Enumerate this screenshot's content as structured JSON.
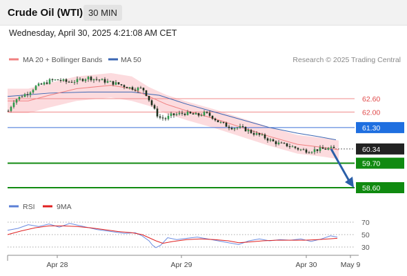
{
  "header": {
    "title": "Crude Oil (WTI)",
    "timeframe": "30 MIN",
    "datetime": "Wednesday, April 30, 2025 4:21:08 AM CET"
  },
  "chart_data": {
    "type": "candlestick",
    "legend": [
      {
        "label": "MA 20 + Bollinger Bands",
        "color": "#f08080"
      },
      {
        "label": "MA 50",
        "color": "#3a66b3"
      }
    ],
    "credit": "Research © 2025 Trading Central",
    "price_levels": [
      {
        "label": "62.60",
        "value": 62.6,
        "kind": "resistance",
        "color": "#e04a4a"
      },
      {
        "label": "62.00",
        "value": 62.0,
        "kind": "resistance",
        "color": "#e04a4a"
      },
      {
        "label": "61.30",
        "value": 61.3,
        "kind": "pivot",
        "color": "#3a6fd8"
      },
      {
        "label": "60.34",
        "value": 60.34,
        "kind": "last",
        "color": "#333333"
      },
      {
        "label": "59.70",
        "value": 59.7,
        "kind": "support",
        "color": "#108a10"
      },
      {
        "label": "58.60",
        "value": 58.6,
        "kind": "target",
        "color": "#108a10"
      }
    ],
    "x_ticks": [
      "Apr 28",
      "Apr 29",
      "Apr 30",
      "May 9"
    ],
    "series": [
      {
        "name": "Price",
        "points": [
          [
            0,
            62.05
          ],
          [
            8,
            62.5
          ],
          [
            18,
            62.7
          ],
          [
            28,
            62.85
          ],
          [
            40,
            63.15
          ],
          [
            50,
            63.25
          ],
          [
            60,
            63.4
          ],
          [
            72,
            63.45
          ],
          [
            85,
            63.35
          ],
          [
            100,
            63.4
          ],
          [
            115,
            63.55
          ],
          [
            130,
            63.45
          ],
          [
            145,
            63.35
          ],
          [
            160,
            63.25
          ],
          [
            175,
            63.1
          ],
          [
            185,
            63.05
          ],
          [
            195,
            63.05
          ],
          [
            200,
            62.8
          ],
          [
            205,
            62.5
          ],
          [
            210,
            62.2
          ],
          [
            215,
            61.9
          ],
          [
            220,
            61.75
          ],
          [
            228,
            61.7
          ],
          [
            236,
            61.85
          ],
          [
            245,
            61.9
          ],
          [
            255,
            61.95
          ],
          [
            265,
            61.9
          ],
          [
            275,
            61.85
          ],
          [
            285,
            61.95
          ],
          [
            295,
            61.8
          ],
          [
            305,
            61.55
          ],
          [
            315,
            61.4
          ],
          [
            325,
            61.3
          ],
          [
            335,
            61.3
          ],
          [
            345,
            61.2
          ],
          [
            355,
            61.05
          ],
          [
            365,
            60.95
          ],
          [
            375,
            60.8
          ],
          [
            385,
            60.65
          ],
          [
            395,
            60.55
          ],
          [
            405,
            60.5
          ],
          [
            415,
            60.4
          ],
          [
            425,
            60.3
          ],
          [
            435,
            60.25
          ],
          [
            445,
            60.3
          ],
          [
            455,
            60.33
          ],
          [
            465,
            60.36
          ],
          [
            475,
            60.34
          ]
        ]
      },
      {
        "name": "MA 20",
        "points": [
          [
            0,
            62.5
          ],
          [
            30,
            62.5
          ],
          [
            60,
            62.75
          ],
          [
            100,
            63.05
          ],
          [
            150,
            63.2
          ],
          [
            180,
            63.05
          ],
          [
            205,
            62.7
          ],
          [
            230,
            62.35
          ],
          [
            260,
            62.05
          ],
          [
            300,
            61.7
          ],
          [
            340,
            61.3
          ],
          [
            380,
            60.9
          ],
          [
            420,
            60.55
          ],
          [
            460,
            60.4
          ],
          [
            480,
            60.3
          ]
        ]
      },
      {
        "name": "MA 50",
        "points": [
          [
            0,
            62.7
          ],
          [
            60,
            62.85
          ],
          [
            120,
            62.9
          ],
          [
            180,
            62.9
          ],
          [
            220,
            62.75
          ],
          [
            260,
            62.35
          ],
          [
            300,
            62.0
          ],
          [
            340,
            61.65
          ],
          [
            380,
            61.3
          ],
          [
            420,
            61.05
          ],
          [
            450,
            60.9
          ],
          [
            476,
            60.75
          ]
        ]
      }
    ],
    "rsi": {
      "legend": [
        {
          "label": "RSI",
          "color": "#5b7fd6"
        },
        {
          "label": "9MA",
          "color": "#e02020"
        }
      ],
      "levels": [
        70,
        50,
        30
      ],
      "ylim": [
        20,
        80
      ],
      "rsi_values": [
        [
          0,
          57
        ],
        [
          15,
          60
        ],
        [
          30,
          66
        ],
        [
          45,
          63
        ],
        [
          60,
          67
        ],
        [
          75,
          62
        ],
        [
          90,
          68
        ],
        [
          110,
          63
        ],
        [
          130,
          58
        ],
        [
          150,
          55
        ],
        [
          170,
          52
        ],
        [
          185,
          53
        ],
        [
          195,
          48
        ],
        [
          205,
          40
        ],
        [
          210,
          33
        ],
        [
          215,
          29
        ],
        [
          222,
          33
        ],
        [
          232,
          45
        ],
        [
          245,
          42
        ],
        [
          260,
          44
        ],
        [
          275,
          46
        ],
        [
          290,
          43
        ],
        [
          305,
          40
        ],
        [
          320,
          37
        ],
        [
          335,
          34
        ],
        [
          350,
          40
        ],
        [
          365,
          43
        ],
        [
          380,
          40
        ],
        [
          395,
          42
        ],
        [
          410,
          41
        ],
        [
          425,
          43
        ],
        [
          440,
          39
        ],
        [
          455,
          43
        ],
        [
          468,
          48
        ],
        [
          478,
          46
        ]
      ],
      "ma_values": [
        [
          0,
          50
        ],
        [
          20,
          56
        ],
        [
          40,
          61
        ],
        [
          60,
          64
        ],
        [
          80,
          64
        ],
        [
          100,
          63
        ],
        [
          120,
          61
        ],
        [
          140,
          58
        ],
        [
          160,
          55
        ],
        [
          180,
          53
        ],
        [
          195,
          50
        ],
        [
          205,
          45
        ],
        [
          215,
          40
        ],
        [
          225,
          36
        ],
        [
          240,
          39
        ],
        [
          260,
          42
        ],
        [
          280,
          43
        ],
        [
          300,
          42
        ],
        [
          320,
          40
        ],
        [
          335,
          37
        ],
        [
          350,
          38
        ],
        [
          370,
          40
        ],
        [
          390,
          41
        ],
        [
          410,
          41
        ],
        [
          430,
          41
        ],
        [
          450,
          42
        ],
        [
          465,
          43
        ],
        [
          478,
          44
        ]
      ]
    }
  }
}
